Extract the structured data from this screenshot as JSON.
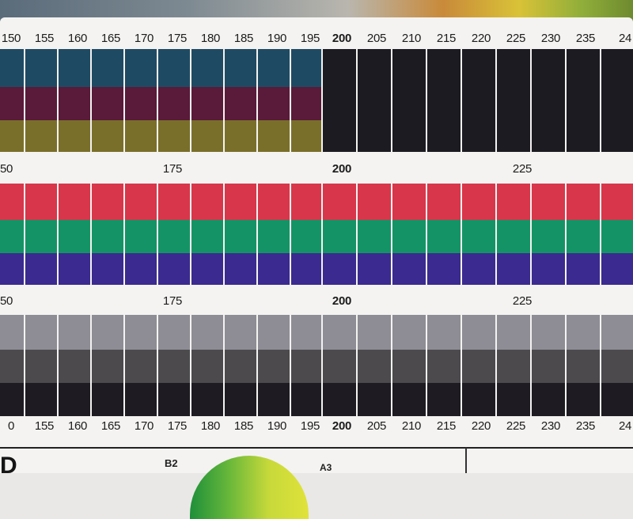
{
  "scales": {
    "top_labels": [
      "150",
      "155",
      "160",
      "165",
      "170",
      "175",
      "180",
      "185",
      "190",
      "195",
      "200",
      "205",
      "210",
      "215",
      "220",
      "225",
      "230",
      "235",
      "24"
    ],
    "mid_labels_1": [
      "50",
      "175",
      "200",
      "225"
    ],
    "mid_labels_2": [
      "50",
      "175",
      "200",
      "225"
    ],
    "bottom_labels": [
      "0",
      "155",
      "160",
      "165",
      "170",
      "175",
      "180",
      "185",
      "190",
      "195",
      "200",
      "205",
      "210",
      "215",
      "220",
      "225",
      "230",
      "235",
      "24"
    ]
  },
  "footer": {
    "corner_letter": "D",
    "b2": "B2",
    "a3": "A3"
  },
  "colors": {
    "band1": [
      "#1f4a63",
      "#5a1a3a",
      "#7a6f2a",
      "#1c1b22"
    ],
    "band2": [
      "#d8364a",
      "#149466",
      "#3b2a8f"
    ],
    "band3": [
      "#8e8d95",
      "#4c4a4d",
      "#1e1b22"
    ]
  }
}
